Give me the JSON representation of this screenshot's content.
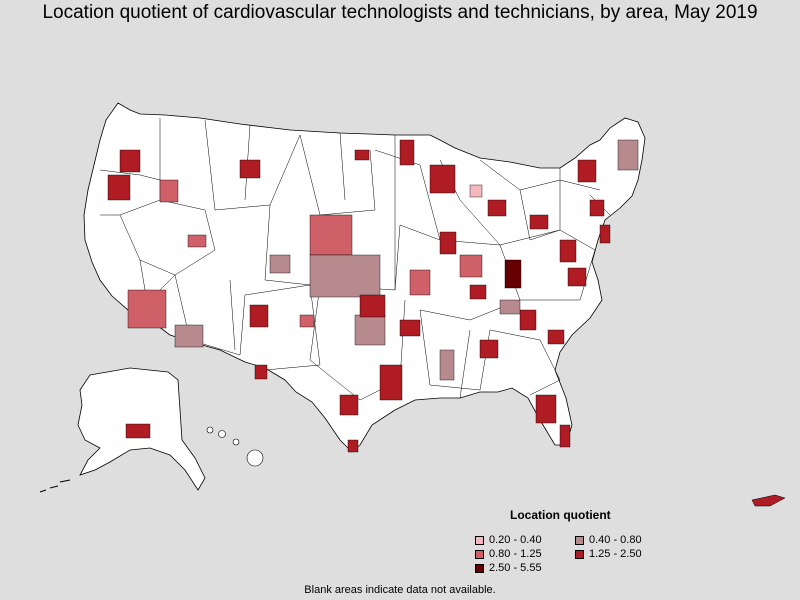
{
  "title": "Location quotient of cardiovascular technologists and technicians, by area, May 2019",
  "legend": {
    "title": "Location quotient",
    "items": [
      {
        "label": "0.20 - 0.40",
        "color": "#f3b7bd"
      },
      {
        "label": "0.40 - 0.80",
        "color": "#b78a8e"
      },
      {
        "label": "0.80 - 1.25",
        "color": "#d06068"
      },
      {
        "label": "1.25 - 2.50",
        "color": "#b01c24"
      },
      {
        "label": "2.50 - 5.55",
        "color": "#640000"
      }
    ]
  },
  "footnote": "Blank areas indicate data not available.",
  "colors": {
    "background": "#dedede",
    "land": "#ffffff",
    "border": "#000000"
  }
}
